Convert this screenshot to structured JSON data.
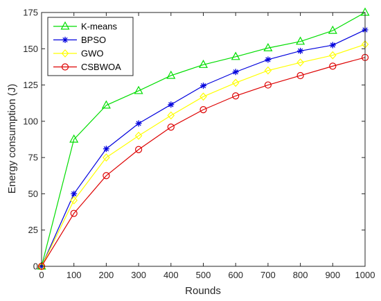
{
  "chart_data": {
    "type": "line",
    "title": "",
    "xlabel": "Rounds",
    "ylabel": "Energy consumption (J)",
    "x": [
      0,
      100,
      200,
      300,
      400,
      500,
      600,
      700,
      800,
      900,
      1000
    ],
    "xticks": [
      "0",
      "100",
      "200",
      "300",
      "400",
      "500",
      "600",
      "700",
      "800",
      "900",
      "1000"
    ],
    "yticks": [
      "0",
      "25",
      "50",
      "75",
      "100",
      "125",
      "150",
      "175"
    ],
    "xlim": [
      0,
      1000
    ],
    "ylim": [
      0,
      175
    ],
    "grid": false,
    "legend_position": "top-left",
    "series": [
      {
        "name": "K-means",
        "color": "#00dd00",
        "marker": "triangle",
        "values": [
          0,
          87.5,
          111,
          121,
          131.5,
          139,
          144.5,
          150.5,
          155,
          162.5,
          175
        ]
      },
      {
        "name": "BPSO",
        "color": "#0000dd",
        "marker": "asterisk",
        "values": [
          0,
          50,
          81,
          98.5,
          111.5,
          124.5,
          134,
          142.5,
          148.5,
          152.5,
          163
        ]
      },
      {
        "name": "GWO",
        "color": "#ffff00",
        "marker": "diamond",
        "values": [
          0,
          45.5,
          75,
          90,
          104,
          117,
          126.5,
          135,
          140.5,
          145.5,
          153
        ]
      },
      {
        "name": "CSBWOA",
        "color": "#dd0000",
        "marker": "circle",
        "values": [
          0,
          36.5,
          62.5,
          80.5,
          96,
          108,
          117.5,
          125,
          131.5,
          138,
          144
        ]
      }
    ]
  }
}
